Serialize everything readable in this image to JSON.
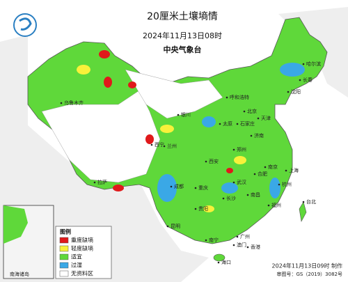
{
  "header": {
    "title": "20厘米土壤墒情",
    "time": "2024年11月13日08时",
    "agency": "中央气象台"
  },
  "legend": {
    "title": "图例",
    "items": [
      {
        "label": "重度缺墒",
        "color": "#e0191b"
      },
      {
        "label": "轻度缺墒",
        "color": "#f8f13a"
      },
      {
        "label": "适宜",
        "color": "#5fd83a"
      },
      {
        "label": "过湿",
        "color": "#3aa8e6"
      },
      {
        "label": "无资料区",
        "color": "#ffffff"
      }
    ]
  },
  "inset": {
    "label": "南海诸岛"
  },
  "footer": {
    "made": "2024年11月13日09时 制作",
    "review": "审图号：GS（2019）3082号"
  },
  "cities": [
    "乌鲁木齐",
    "呼和浩特",
    "哈尔滨",
    "长春",
    "沈阳",
    "北京",
    "天津",
    "石家庄",
    "太原",
    "济南",
    "银川",
    "西宁",
    "兰州",
    "西安",
    "郑州",
    "南京",
    "上海",
    "合肥",
    "武汉",
    "杭州",
    "拉萨",
    "成都",
    "重庆",
    "长沙",
    "南昌",
    "福州",
    "台北",
    "贵阳",
    "昆明",
    "南宁",
    "广州",
    "香港",
    "澳门",
    "海口"
  ]
}
